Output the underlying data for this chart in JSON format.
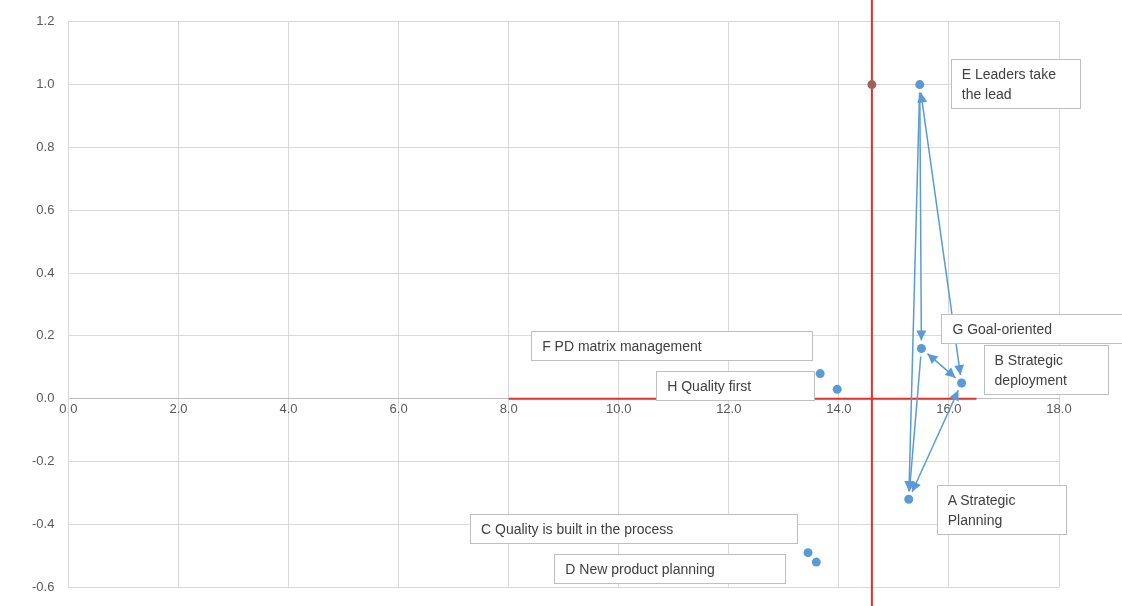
{
  "chart_data": {
    "type": "scatter",
    "xlim": [
      0,
      18
    ],
    "xticks": [
      {
        "value": 0,
        "label": "0.0"
      },
      {
        "value": 2,
        "label": "2.0"
      },
      {
        "value": 4,
        "label": "4.0"
      },
      {
        "value": 6,
        "label": "6.0"
      },
      {
        "value": 8,
        "label": "8.0"
      },
      {
        "value": 10,
        "label": "10.0"
      },
      {
        "value": 12,
        "label": "12.0"
      },
      {
        "value": 14,
        "label": "14.0"
      },
      {
        "value": 16,
        "label": "16.0"
      },
      {
        "value": 18,
        "label": "18.0"
      }
    ],
    "ylim": [
      -0.6,
      1.2
    ],
    "yticks": [
      {
        "value": -0.6,
        "label": "-0.6"
      },
      {
        "value": -0.4,
        "label": "-0.4"
      },
      {
        "value": -0.2,
        "label": "-0.2"
      },
      {
        "value": 0,
        "label": "0.0"
      },
      {
        "value": 0.2,
        "label": "0.2"
      },
      {
        "value": 0.4,
        "label": "0.4"
      },
      {
        "value": 0.6,
        "label": "0.6"
      },
      {
        "value": 0.8,
        "label": "0.8"
      },
      {
        "value": 1.0,
        "label": "1.0"
      },
      {
        "value": 1.2,
        "label": "1.2"
      }
    ],
    "grid": true,
    "marker": "circle",
    "legend": false,
    "series": [
      {
        "color": "#5b9bd5",
        "x": [
          15.27,
          16.23,
          13.44,
          13.59,
          15.47,
          13.66,
          15.5,
          13.97
        ],
        "values": [
          -0.32,
          0.05,
          -0.49,
          -0.52,
          1.0,
          0.08,
          0.16,
          0.03
        ]
      },
      {
        "type": "line",
        "color": "#e0302a",
        "marker": "none",
        "x": [
          8,
          16.5
        ],
        "values": [
          0,
          0
        ]
      },
      {
        "color": "#a0605a",
        "x": [
          14.6
        ],
        "values": [
          1.0
        ]
      }
    ],
    "ref_lines": [
      {
        "axis": "x",
        "value": 14.6,
        "color": "#e0302a"
      }
    ],
    "annotations": [
      {
        "text": "A Strategic Planning",
        "x": 15.27,
        "y": -0.32
      },
      {
        "text": "B Strategic deployment",
        "x": 16.23,
        "y": 0.05
      },
      "C  Quality is built in the process",
      "D New product planning",
      "E Leaders take the lead",
      "F PD matrix management",
      {
        "text": "G Goal-oriented",
        "x": 15.5,
        "y": 0.16
      },
      "H Quality first"
    ]
  }
}
